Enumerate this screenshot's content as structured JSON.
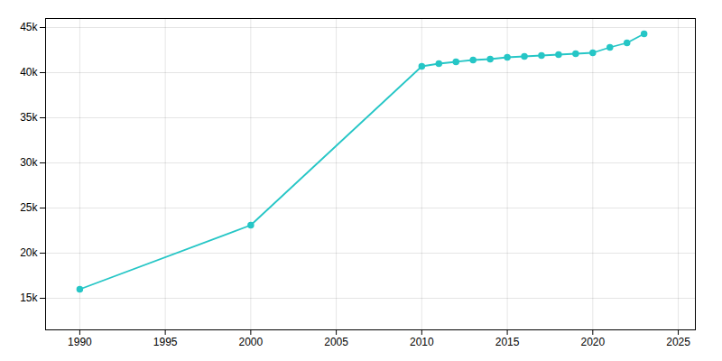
{
  "chart_data": {
    "type": "line",
    "x": [
      1990,
      2000,
      2010,
      2011,
      2012,
      2013,
      2014,
      2015,
      2016,
      2017,
      2018,
      2019,
      2020,
      2021,
      2022,
      2023
    ],
    "values": [
      16000,
      23100,
      40700,
      41000,
      41200,
      41400,
      41500,
      41700,
      41800,
      41900,
      42000,
      42100,
      42200,
      42800,
      43300,
      44300
    ],
    "color": "#26C6C6",
    "marker": "circle",
    "xlim": [
      1988,
      2026
    ],
    "xticks": [
      1990,
      1995,
      2000,
      2005,
      2010,
      2015,
      2020,
      2025
    ],
    "ylim": [
      11500,
      46000
    ],
    "yticks": [
      {
        "value": 15000,
        "label": "15k"
      },
      {
        "value": 20000,
        "label": "20k"
      },
      {
        "value": 25000,
        "label": "25k"
      },
      {
        "value": 30000,
        "label": "30k"
      },
      {
        "value": 35000,
        "label": "35k"
      },
      {
        "value": 40000,
        "label": "40k"
      },
      {
        "value": 45000,
        "label": "45k"
      }
    ],
    "grid": true
  }
}
